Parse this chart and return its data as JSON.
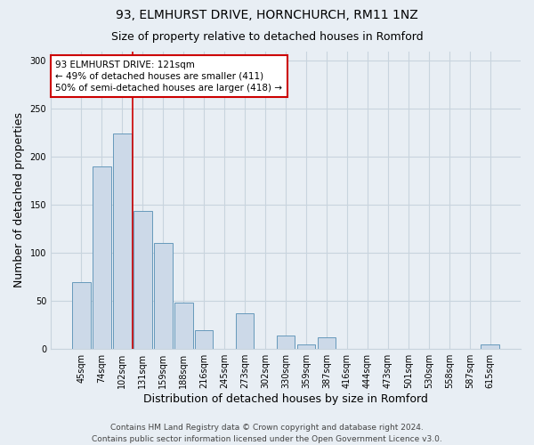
{
  "title": "93, ELMHURST DRIVE, HORNCHURCH, RM11 1NZ",
  "subtitle": "Size of property relative to detached houses in Romford",
  "xlabel": "Distribution of detached houses by size in Romford",
  "ylabel": "Number of detached properties",
  "footer_line1": "Contains HM Land Registry data © Crown copyright and database right 2024.",
  "footer_line2": "Contains public sector information licensed under the Open Government Licence v3.0.",
  "categories": [
    "45sqm",
    "74sqm",
    "102sqm",
    "131sqm",
    "159sqm",
    "188sqm",
    "216sqm",
    "245sqm",
    "273sqm",
    "302sqm",
    "330sqm",
    "359sqm",
    "387sqm",
    "416sqm",
    "444sqm",
    "473sqm",
    "501sqm",
    "530sqm",
    "558sqm",
    "587sqm",
    "615sqm"
  ],
  "values": [
    70,
    190,
    224,
    144,
    110,
    48,
    20,
    0,
    37,
    0,
    14,
    5,
    12,
    0,
    0,
    0,
    0,
    0,
    0,
    0,
    5
  ],
  "bar_color": "#ccd9e8",
  "bar_edge_color": "#6699bb",
  "vline_x": 2.5,
  "vline_color": "#cc0000",
  "annotation_text": "93 ELMHURST DRIVE: 121sqm\n← 49% of detached houses are smaller (411)\n50% of semi-detached houses are larger (418) →",
  "annotation_box_color": "#ffffff",
  "annotation_box_edge": "#cc0000",
  "ylim": [
    0,
    310
  ],
  "yticks": [
    0,
    50,
    100,
    150,
    200,
    250,
    300
  ],
  "background_color": "#e8eef4",
  "grid_color": "#c8d4de",
  "title_fontsize": 10,
  "subtitle_fontsize": 9,
  "axis_label_fontsize": 9,
  "tick_fontsize": 7,
  "footer_fontsize": 6.5,
  "annotation_fontsize": 7.5
}
